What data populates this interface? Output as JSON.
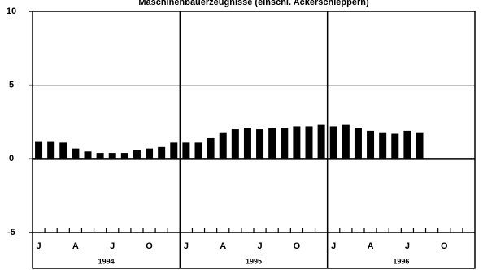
{
  "chart_data": {
    "type": "bar",
    "title": "Maschinenbauerzeugnisse (einschl. Ackerschleppern)",
    "categories": [
      "J",
      null,
      null,
      "A",
      null,
      null,
      "J",
      null,
      null,
      "O",
      null,
      null,
      "J",
      null,
      null,
      "A",
      null,
      null,
      "J",
      null,
      null,
      "O",
      null,
      null,
      "J",
      null,
      null,
      "A",
      null,
      null,
      "J",
      null,
      null,
      "O",
      null,
      null
    ],
    "year_labels": [
      "1994",
      "1995",
      "1996"
    ],
    "values": [
      1.2,
      1.2,
      1.1,
      0.7,
      0.5,
      0.4,
      0.4,
      0.4,
      0.6,
      0.7,
      0.8,
      1.1,
      1.1,
      1.1,
      1.4,
      1.8,
      2.0,
      2.1,
      2.0,
      2.1,
      2.1,
      2.2,
      2.2,
      2.3,
      2.2,
      2.3,
      2.1,
      1.9,
      1.8,
      1.7,
      1.9,
      1.8,
      null,
      null,
      null,
      null
    ],
    "color": "#000000",
    "ylim": [
      -5,
      10
    ],
    "yticks": [
      -5,
      0,
      5,
      10
    ],
    "grid": true
  }
}
